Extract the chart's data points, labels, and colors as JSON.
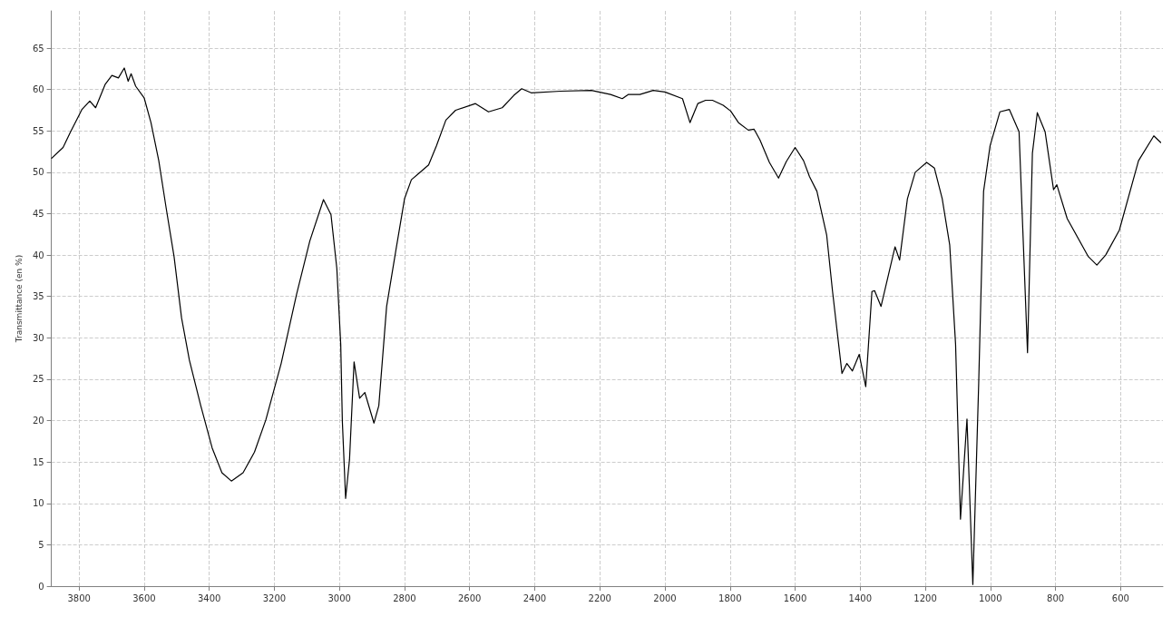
{
  "chart_data": {
    "type": "line",
    "ylabel": "Transmittance (en %)",
    "xlim": [
      3885,
      470
    ],
    "xticks": [
      3800,
      3600,
      3400,
      3200,
      3000,
      2800,
      2600,
      2400,
      2200,
      2000,
      1800,
      1600,
      1400,
      1200,
      1000,
      800,
      600
    ],
    "ylim": [
      0,
      69.5
    ],
    "yticks": [
      0,
      5,
      10,
      15,
      20,
      25,
      30,
      35,
      40,
      45,
      50,
      55,
      60,
      65
    ],
    "grid": true,
    "marker": "none",
    "line_style": "solid",
    "series": [
      {
        "color": "#000000",
        "x": [
          3884,
          3849,
          3826,
          3800,
          3791,
          3767,
          3749,
          3720,
          3699,
          3679,
          3661,
          3649,
          3640,
          3626,
          3600,
          3579,
          3555,
          3532,
          3508,
          3485,
          3461,
          3426,
          3391,
          3361,
          3332,
          3296,
          3261,
          3226,
          3179,
          3132,
          3091,
          3049,
          3026,
          3008,
          2996,
          2991,
          2981,
          2969,
          2955,
          2938,
          2922,
          2894,
          2879,
          2855,
          2826,
          2800,
          2779,
          2755,
          2726,
          2702,
          2673,
          2643,
          2582,
          2542,
          2500,
          2464,
          2440,
          2411,
          2321,
          2226,
          2167,
          2131,
          2113,
          2077,
          2036,
          2000,
          1946,
          1923,
          1899,
          1875,
          1854,
          1821,
          1798,
          1774,
          1744,
          1726,
          1708,
          1679,
          1651,
          1627,
          1600,
          1574,
          1556,
          1533,
          1503,
          1485,
          1456,
          1441,
          1424,
          1403,
          1383,
          1364,
          1356,
          1336,
          1293,
          1279,
          1255,
          1231,
          1196,
          1172,
          1148,
          1125,
          1107,
          1092,
          1072,
          1054,
          1036,
          1021,
          1001,
          971,
          942,
          912,
          886,
          871,
          856,
          832,
          806,
          796,
          764,
          699,
          673,
          646,
          604,
          545,
          498,
          477
        ],
        "values": [
          51.7,
          53,
          54.9,
          56.9,
          57.6,
          58.6,
          57.8,
          60.6,
          61.7,
          61.4,
          62.6,
          61,
          61.9,
          60.4,
          59,
          56,
          51.4,
          45.6,
          39.8,
          32.4,
          27.3,
          21.8,
          16.7,
          13.7,
          12.7,
          13.7,
          16.2,
          20.1,
          26.9,
          35.2,
          41.7,
          46.7,
          44.9,
          38.4,
          29.2,
          19.9,
          10.6,
          15.3,
          27.1,
          22.7,
          23.4,
          19.7,
          21.8,
          33.8,
          40.7,
          46.8,
          49.1,
          49.9,
          50.9,
          53.2,
          56.3,
          57.5,
          58.3,
          57.3,
          57.8,
          59.3,
          60.1,
          59.6,
          59.8,
          59.9,
          59.4,
          58.9,
          59.4,
          59.4,
          59.9,
          59.7,
          58.9,
          56,
          58.3,
          58.7,
          58.7,
          58.1,
          57.4,
          56,
          55.1,
          55.2,
          53.9,
          51.2,
          49.3,
          51.3,
          53,
          51.4,
          49.5,
          47.7,
          42.4,
          35.6,
          25.7,
          26.9,
          26,
          28,
          24.1,
          35.6,
          35.7,
          33.8,
          41,
          39.4,
          46.8,
          50,
          51.2,
          50.5,
          46.8,
          41.2,
          29.2,
          8.1,
          20.2,
          0.2,
          24.5,
          47.7,
          53.2,
          57.3,
          57.6,
          54.9,
          28.2,
          52.3,
          57.2,
          54.9,
          47.9,
          48.5,
          44.4,
          39.8,
          38.8,
          40,
          43,
          51.4,
          54.4,
          53.6
        ]
      }
    ]
  }
}
